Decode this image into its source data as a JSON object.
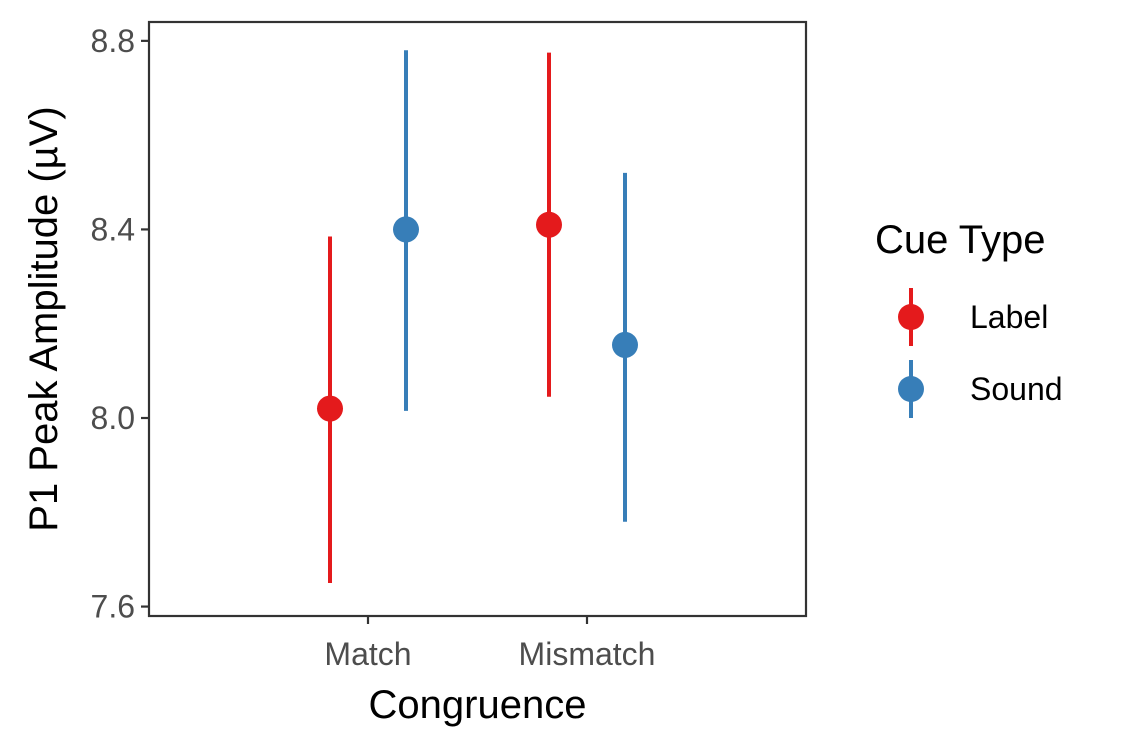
{
  "chart_data": {
    "type": "scatter",
    "title": "",
    "xlabel": "Congruence",
    "ylabel": "P1 Peak Amplitude (µV)",
    "categories": [
      "Match",
      "Mismatch"
    ],
    "ylim": [
      7.58,
      8.84
    ],
    "yticks": [
      7.6,
      8.0,
      8.4,
      8.8
    ],
    "ytick_labels": [
      "7.6",
      "8.0",
      "8.4",
      "8.8"
    ],
    "grid": false,
    "legend": {
      "title": "Cue Type",
      "position": "right"
    },
    "series": [
      {
        "name": "Label",
        "color": "#e41a1c",
        "values": [
          8.02,
          8.41
        ],
        "lower": [
          7.65,
          8.045
        ],
        "upper": [
          8.385,
          8.775
        ]
      },
      {
        "name": "Sound",
        "color": "#377eb8",
        "values": [
          8.4,
          8.155
        ],
        "lower": [
          8.015,
          7.78
        ],
        "upper": [
          8.78,
          8.52
        ]
      }
    ]
  }
}
